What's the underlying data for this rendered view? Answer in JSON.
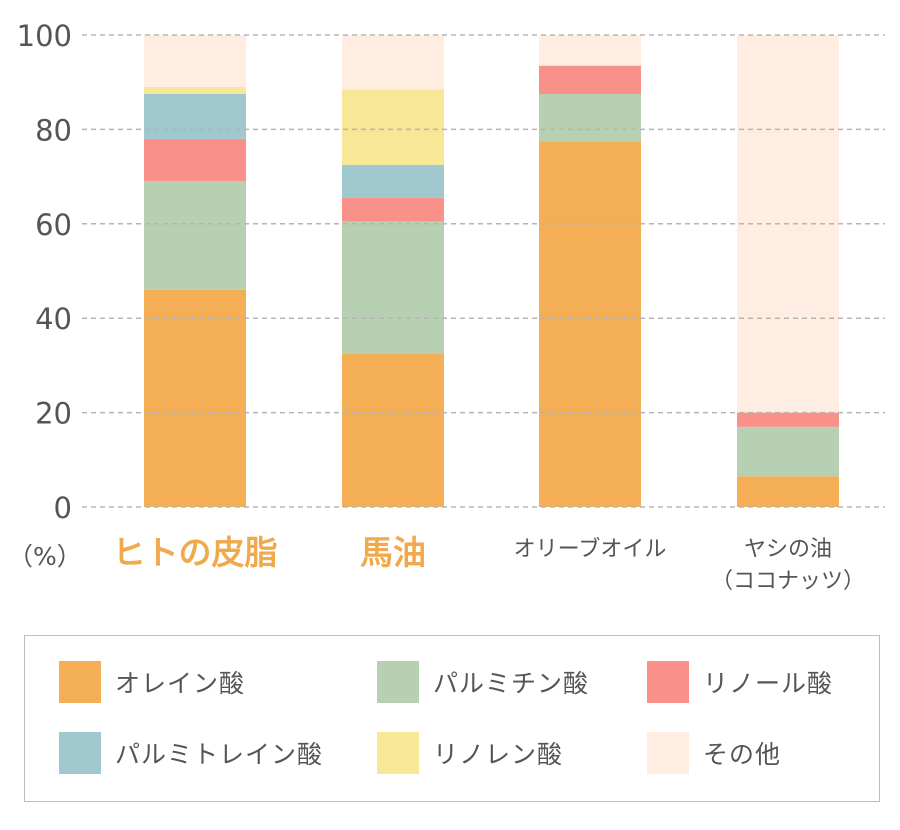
{
  "chart_data": {
    "type": "bar",
    "stacked": true,
    "categories": [
      "ヒトの皮脂",
      "馬油",
      "オリーブオイル",
      "ヤシの油"
    ],
    "category_sublabels": [
      "",
      "",
      "",
      "（ココナッツ）"
    ],
    "category_label_colors": [
      "#f0a94b",
      "#f0a94b",
      "#555555",
      "#555555"
    ],
    "unit_label": "（%）",
    "ylim": [
      0,
      100
    ],
    "yticks": [
      0,
      20,
      40,
      60,
      80,
      100
    ],
    "grid": true,
    "series": [
      {
        "name": "オレイン酸",
        "color": "#f4ae55",
        "values": [
          46,
          32.5,
          77.5,
          6.5
        ]
      },
      {
        "name": "パルミチン酸",
        "color": "#b7d0b2",
        "values": [
          23,
          28,
          10,
          10.5
        ]
      },
      {
        "name": "リノール酸",
        "color": "#f99089",
        "values": [
          9,
          5,
          6,
          3
        ]
      },
      {
        "name": "パルミトレイン酸",
        "color": "#9fc8cf",
        "values": [
          9.5,
          7,
          0,
          0
        ]
      },
      {
        "name": "リノレン酸",
        "color": "#f7e796",
        "values": [
          1.5,
          16,
          0,
          0
        ]
      },
      {
        "name": "その他",
        "color": "#feede0",
        "values": [
          11,
          11.5,
          6.5,
          80
        ]
      }
    ],
    "legend_position": "bottom"
  }
}
